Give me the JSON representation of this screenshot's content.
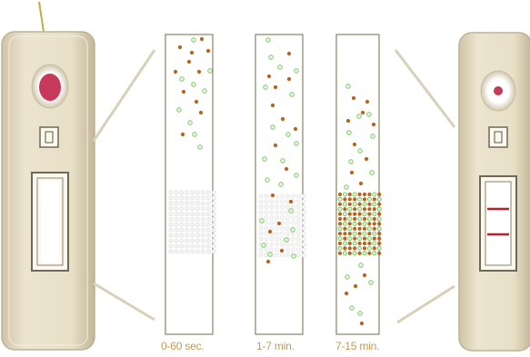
{
  "time_labels": [
    "0-60 sec.",
    "1-7 min.",
    "7-15 min."
  ],
  "colors": {
    "device_body": "#e6dcc3",
    "device_edge": "#bdb197",
    "sample_fill": "#c7395a",
    "particle_gold": "#b8641a",
    "particle_green": "#9fd88a",
    "particle_green_ring": "#6fbf5c",
    "test_line": "#b8212a",
    "connector": "#d8d0b8",
    "strip_border": "#8a8268",
    "label_text": "#c39a5a"
  }
}
